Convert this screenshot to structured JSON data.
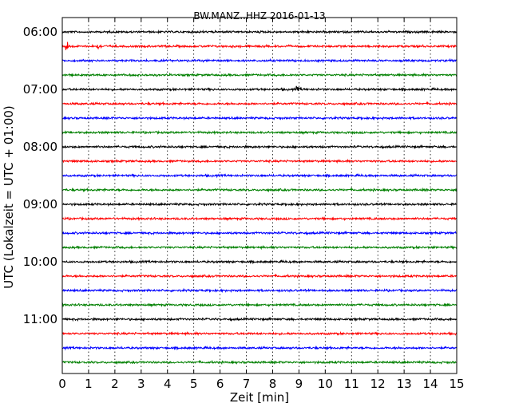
{
  "chart_data": {
    "type": "line",
    "title": "BW.MANZ..HHZ 2016-01-13",
    "xlabel": "Zeit  [min]",
    "ylabel": "UTC (Lokalzeit = UTC + 01:00)",
    "xlim": [
      0,
      15
    ],
    "x_ticks": [
      "0",
      "1",
      "2",
      "3",
      "4",
      "5",
      "6",
      "7",
      "8",
      "9",
      "10",
      "11",
      "12",
      "13",
      "14",
      "15"
    ],
    "y_tick_labels": [
      "06:00",
      "07:00",
      "08:00",
      "09:00",
      "10:00",
      "11:00"
    ],
    "grid": "vertical dotted at each minute",
    "trace_colors": [
      "#000000",
      "#ff0000",
      "#0000ff",
      "#008000"
    ],
    "traces": [
      {
        "start": "06:00",
        "color": "#000000"
      },
      {
        "start": "06:15",
        "color": "#ff0000"
      },
      {
        "start": "06:30",
        "color": "#0000ff"
      },
      {
        "start": "06:45",
        "color": "#008000"
      },
      {
        "start": "07:00",
        "color": "#000000"
      },
      {
        "start": "07:15",
        "color": "#ff0000"
      },
      {
        "start": "07:30",
        "color": "#0000ff"
      },
      {
        "start": "07:45",
        "color": "#008000"
      },
      {
        "start": "08:00",
        "color": "#000000"
      },
      {
        "start": "08:15",
        "color": "#ff0000"
      },
      {
        "start": "08:30",
        "color": "#0000ff"
      },
      {
        "start": "08:45",
        "color": "#008000"
      },
      {
        "start": "09:00",
        "color": "#000000"
      },
      {
        "start": "09:15",
        "color": "#ff0000"
      },
      {
        "start": "09:30",
        "color": "#0000ff"
      },
      {
        "start": "09:45",
        "color": "#008000"
      },
      {
        "start": "10:00",
        "color": "#000000"
      },
      {
        "start": "10:15",
        "color": "#ff0000"
      },
      {
        "start": "10:30",
        "color": "#0000ff"
      },
      {
        "start": "10:45",
        "color": "#008000"
      },
      {
        "start": "11:00",
        "color": "#000000"
      },
      {
        "start": "11:15",
        "color": "#ff0000"
      },
      {
        "start": "11:30",
        "color": "#0000ff"
      },
      {
        "start": "11:45",
        "color": "#008000"
      }
    ],
    "events": [
      {
        "trace": "06:15",
        "x_min": 0.15,
        "amplitude": "large"
      },
      {
        "trace": "06:15",
        "x_min": 1.35,
        "amplitude": "small"
      },
      {
        "trace": "07:00",
        "x_min": 8.9,
        "amplitude": "small"
      }
    ]
  }
}
